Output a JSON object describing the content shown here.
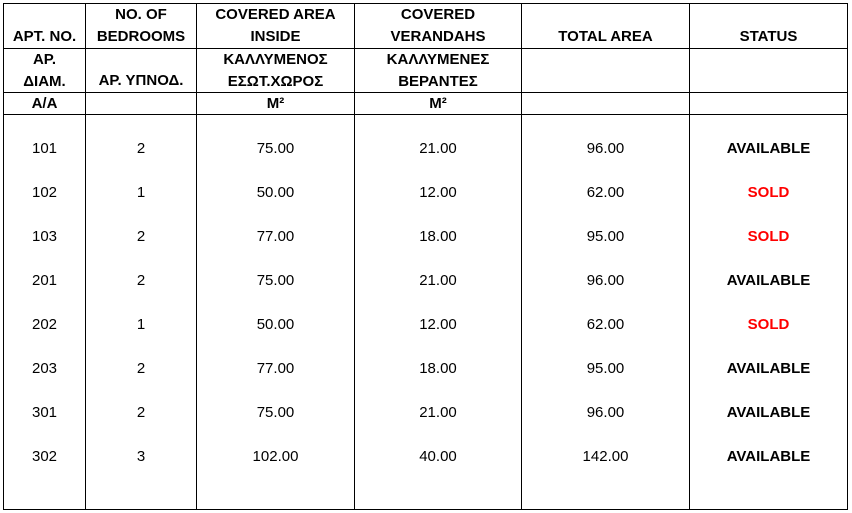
{
  "header_en": {
    "apt_no": "APT. NO.",
    "bedrooms": [
      "NO. OF",
      "BEDROOMS"
    ],
    "covered_inside": [
      "COVERED AREA",
      "INSIDE"
    ],
    "covered_verandahs": [
      "COVERED",
      "VERANDAHS"
    ],
    "total_area": "TOTAL AREA",
    "status": "STATUS"
  },
  "header_gr": {
    "apt_no": [
      "ΑΡ.",
      "ΔΙΑΜ."
    ],
    "bedrooms": "ΑΡ. ΥΠΝΟΔ.",
    "covered_inside": [
      "ΚΑΛΛΥΜΕΝΟΣ",
      "ΕΣΩΤ.ΧΩΡΟΣ"
    ],
    "covered_verandahs": [
      "ΚΑΛΛΥΜΕΝΕΣ",
      "ΒΕΡΑΝΤΕΣ"
    ]
  },
  "units": {
    "apt_no": "Α/Α",
    "covered_inside": "M²",
    "covered_verandahs": "M²"
  },
  "status_colors": {
    "AVAILABLE": "#000000",
    "SOLD": "#ff0000"
  },
  "rows": [
    {
      "apt": "101",
      "bedrooms": "2",
      "inside": "75.00",
      "verandahs": "21.00",
      "total": "96.00",
      "status": "AVAILABLE"
    },
    {
      "apt": "102",
      "bedrooms": "1",
      "inside": "50.00",
      "verandahs": "12.00",
      "total": "62.00",
      "status": "SOLD"
    },
    {
      "apt": "103",
      "bedrooms": "2",
      "inside": "77.00",
      "verandahs": "18.00",
      "total": "95.00",
      "status": "SOLD"
    },
    {
      "apt": "201",
      "bedrooms": "2",
      "inside": "75.00",
      "verandahs": "21.00",
      "total": "96.00",
      "status": "AVAILABLE"
    },
    {
      "apt": "202",
      "bedrooms": "1",
      "inside": "50.00",
      "verandahs": "12.00",
      "total": "62.00",
      "status": "SOLD"
    },
    {
      "apt": "203",
      "bedrooms": "2",
      "inside": "77.00",
      "verandahs": "18.00",
      "total": "95.00",
      "status": "AVAILABLE"
    },
    {
      "apt": "301",
      "bedrooms": "2",
      "inside": "75.00",
      "verandahs": "21.00",
      "total": "96.00",
      "status": "AVAILABLE"
    },
    {
      "apt": "302",
      "bedrooms": "3",
      "inside": "102.00",
      "verandahs": "40.00",
      "total": "142.00",
      "status": "AVAILABLE"
    }
  ]
}
